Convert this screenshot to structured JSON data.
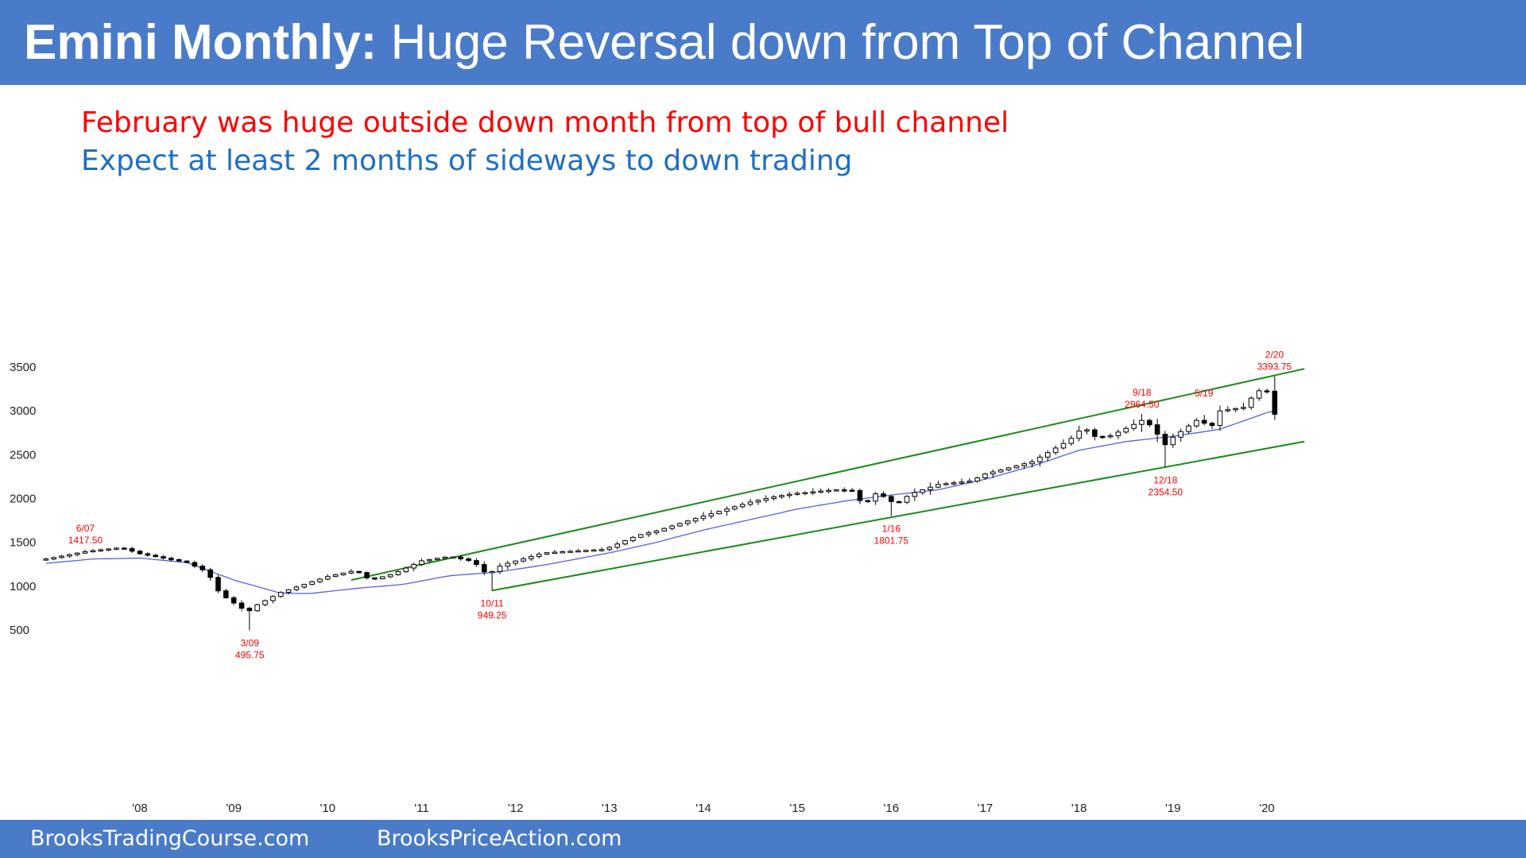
{
  "header": {
    "title_bold": "Emini Monthly:",
    "title_rest": " Huge Reversal down from Top of Channel"
  },
  "subtitle": {
    "line1": "February was huge outside down month from top of bull channel",
    "line2": "Expect at least 2 months of sideways to down trading"
  },
  "footer": {
    "left": "BrooksTradingCourse.com",
    "right": "BrooksPriceAction.com"
  },
  "colors": {
    "header_bg": "#4a7bc8",
    "bear": "#000000",
    "bull": "#ffffff",
    "channel": "#1a8a1a",
    "ema": "#5560e0",
    "label": "#ff0000",
    "line2": "#1f6fc2"
  },
  "chart_data": {
    "type": "candlestick",
    "ylim": [
      300,
      3600
    ],
    "yticks": [
      500,
      1000,
      1500,
      2000,
      2500,
      3000,
      3500
    ],
    "xticks": [
      {
        "label": "'08",
        "t": 2008.0
      },
      {
        "label": "'09",
        "t": 2009.0
      },
      {
        "label": "'10",
        "t": 2010.0
      },
      {
        "label": "'11",
        "t": 2011.0
      },
      {
        "label": "'12",
        "t": 2012.0
      },
      {
        "label": "'13",
        "t": 2013.0
      },
      {
        "label": "'14",
        "t": 2014.0
      },
      {
        "label": "'15",
        "t": 2015.0
      },
      {
        "label": "'16",
        "t": 2016.0
      },
      {
        "label": "'17",
        "t": 2017.0
      },
      {
        "label": "'18",
        "t": 2018.0
      },
      {
        "label": "'19",
        "t": 2019.0
      },
      {
        "label": "'20",
        "t": 2020.0
      }
    ],
    "close_anchors": [
      [
        2007.0,
        1310
      ],
      [
        2007.45,
        1400
      ],
      [
        2007.8,
        1440
      ],
      [
        2008.0,
        1370
      ],
      [
        2008.5,
        1270
      ],
      [
        2008.72,
        1160
      ],
      [
        2008.82,
        960
      ],
      [
        2008.9,
        880
      ],
      [
        2009.15,
        700
      ],
      [
        2009.2,
        760
      ],
      [
        2009.5,
        930
      ],
      [
        2010.0,
        1110
      ],
      [
        2010.3,
        1180
      ],
      [
        2010.45,
        1070
      ],
      [
        2010.7,
        1140
      ],
      [
        2011.0,
        1290
      ],
      [
        2011.3,
        1340
      ],
      [
        2011.55,
        1280
      ],
      [
        2011.7,
        1130
      ],
      [
        2011.85,
        1240
      ],
      [
        2012.3,
        1380
      ],
      [
        2012.6,
        1400
      ],
      [
        2012.95,
        1420
      ],
      [
        2013.3,
        1580
      ],
      [
        2013.5,
        1630
      ],
      [
        2014.0,
        1800
      ],
      [
        2014.5,
        1960
      ],
      [
        2014.8,
        2030
      ],
      [
        2015.0,
        2060
      ],
      [
        2015.4,
        2100
      ],
      [
        2015.6,
        2090
      ],
      [
        2015.7,
        1920
      ],
      [
        2015.85,
        2070
      ],
      [
        2016.05,
        1930
      ],
      [
        2016.2,
        2050
      ],
      [
        2016.5,
        2160
      ],
      [
        2016.85,
        2200
      ],
      [
        2017.0,
        2280
      ],
      [
        2017.5,
        2420
      ],
      [
        2017.9,
        2670
      ],
      [
        2018.05,
        2820
      ],
      [
        2018.15,
        2710
      ],
      [
        2018.3,
        2700
      ],
      [
        2018.5,
        2800
      ],
      [
        2018.72,
        2920
      ],
      [
        2018.8,
        2710
      ],
      [
        2018.87,
        2760
      ],
      [
        2018.95,
        2510
      ],
      [
        2019.0,
        2700
      ],
      [
        2019.3,
        2930
      ],
      [
        2019.38,
        2760
      ],
      [
        2019.5,
        3000
      ],
      [
        2019.75,
        3040
      ],
      [
        2019.9,
        3230
      ],
      [
        2020.0,
        3225
      ],
      [
        2020.08,
        2960
      ]
    ],
    "ema_anchors": [
      [
        2007.0,
        1260
      ],
      [
        2007.5,
        1310
      ],
      [
        2008.0,
        1320
      ],
      [
        2008.5,
        1270
      ],
      [
        2009.0,
        1070
      ],
      [
        2009.5,
        920
      ],
      [
        2009.8,
        915
      ],
      [
        2010.3,
        975
      ],
      [
        2010.8,
        1020
      ],
      [
        2011.3,
        1120
      ],
      [
        2011.8,
        1160
      ],
      [
        2012.3,
        1240
      ],
      [
        2013.0,
        1380
      ],
      [
        2013.5,
        1500
      ],
      [
        2014.0,
        1640
      ],
      [
        2014.5,
        1760
      ],
      [
        2015.0,
        1880
      ],
      [
        2015.5,
        1970
      ],
      [
        2016.0,
        2040
      ],
      [
        2016.5,
        2100
      ],
      [
        2017.0,
        2220
      ],
      [
        2017.5,
        2370
      ],
      [
        2018.0,
        2550
      ],
      [
        2018.5,
        2650
      ],
      [
        2019.0,
        2710
      ],
      [
        2019.5,
        2790
      ],
      [
        2020.0,
        2980
      ],
      [
        2020.08,
        3000
      ]
    ],
    "channel_lines": [
      {
        "name": "upper",
        "from": [
          2010.25,
          1070
        ],
        "to": [
          2020.4,
          3480
        ]
      },
      {
        "name": "lower",
        "from": [
          2011.75,
          950
        ],
        "to": [
          2020.4,
          2650
        ]
      }
    ],
    "annotations": [
      {
        "date": "6/07",
        "price": "1417.50",
        "t": 2007.42,
        "y": 1417.5,
        "pos": "above"
      },
      {
        "date": "3/09",
        "price": "495.75",
        "t": 2009.17,
        "y": 495.75,
        "pos": "below"
      },
      {
        "date": "10/11",
        "price": "949.25",
        "t": 2011.75,
        "y": 949.25,
        "pos": "below"
      },
      {
        "date": "1/16",
        "price": "1801.75",
        "t": 2016.0,
        "y": 1801.75,
        "pos": "below"
      },
      {
        "date": "9/18",
        "price": "2964.50",
        "t": 2018.67,
        "y": 2964.5,
        "pos": "above"
      },
      {
        "date": "12/18",
        "price": "2354.50",
        "t": 2018.92,
        "y": 2354.5,
        "pos": "below"
      },
      {
        "date": "5/19",
        "price": "",
        "t": 2019.33,
        "y": 2954,
        "pos": "above"
      },
      {
        "date": "2/20",
        "price": "3393.75",
        "t": 2020.08,
        "y": 3393.75,
        "pos": "above"
      }
    ]
  }
}
